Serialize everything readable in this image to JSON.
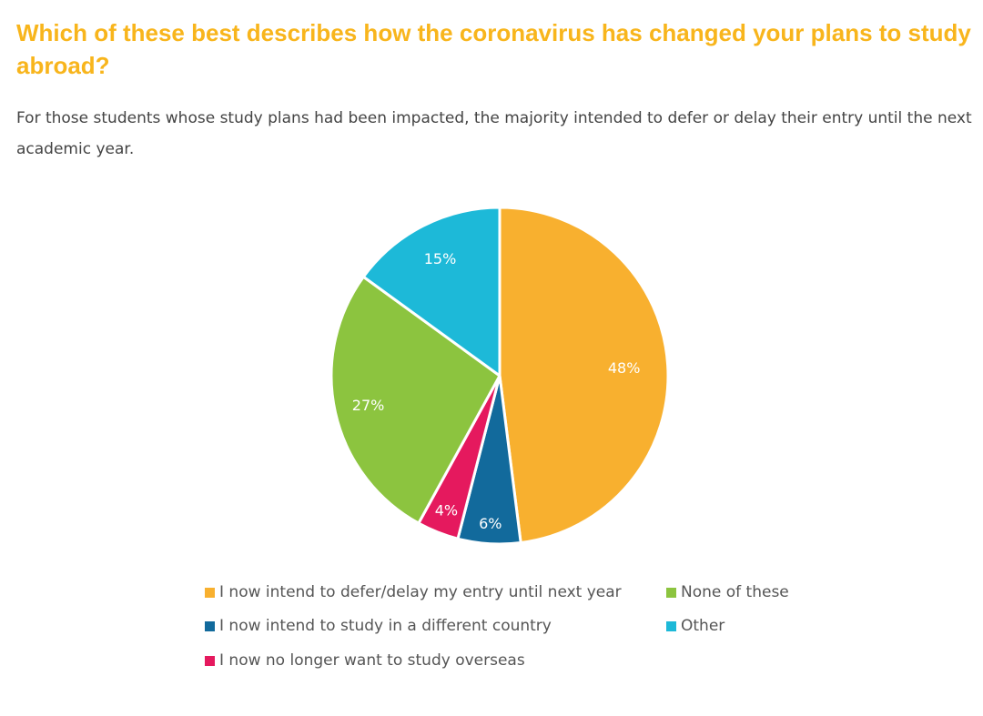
{
  "header": {
    "title": "Which of these best describes how the coronavirus has changed your plans to study abroad?",
    "subtitle": "For those students whose study plans had been impacted, the majority intended to defer or delay their entry until the next academic year."
  },
  "chart_data": {
    "type": "pie",
    "title": "",
    "legend_position": "bottom",
    "slices": [
      {
        "label": "I now intend to defer/delay my entry until next year",
        "value": 48,
        "display": "48%",
        "color": "#f8b02f"
      },
      {
        "label": "I now intend to study in a different country",
        "value": 6,
        "display": "6%",
        "color": "#126a9c"
      },
      {
        "label": "I now no longer want to study overseas",
        "value": 4,
        "display": "4%",
        "color": "#e5195e"
      },
      {
        "label": "None of these",
        "value": 27,
        "display": "27%",
        "color": "#8cc43f"
      },
      {
        "label": "Other",
        "value": 15,
        "display": "15%",
        "color": "#1db9d8"
      }
    ]
  }
}
